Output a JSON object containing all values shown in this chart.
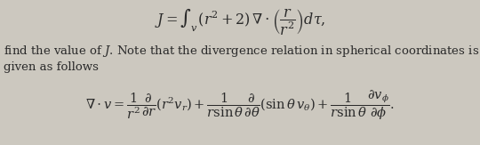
{
  "background_color": "#ccc8bf",
  "text_color": "#2a2a2a",
  "fontsize_eq1": 11.5,
  "fontsize_text": 9.5,
  "fontsize_eq2": 10.5
}
